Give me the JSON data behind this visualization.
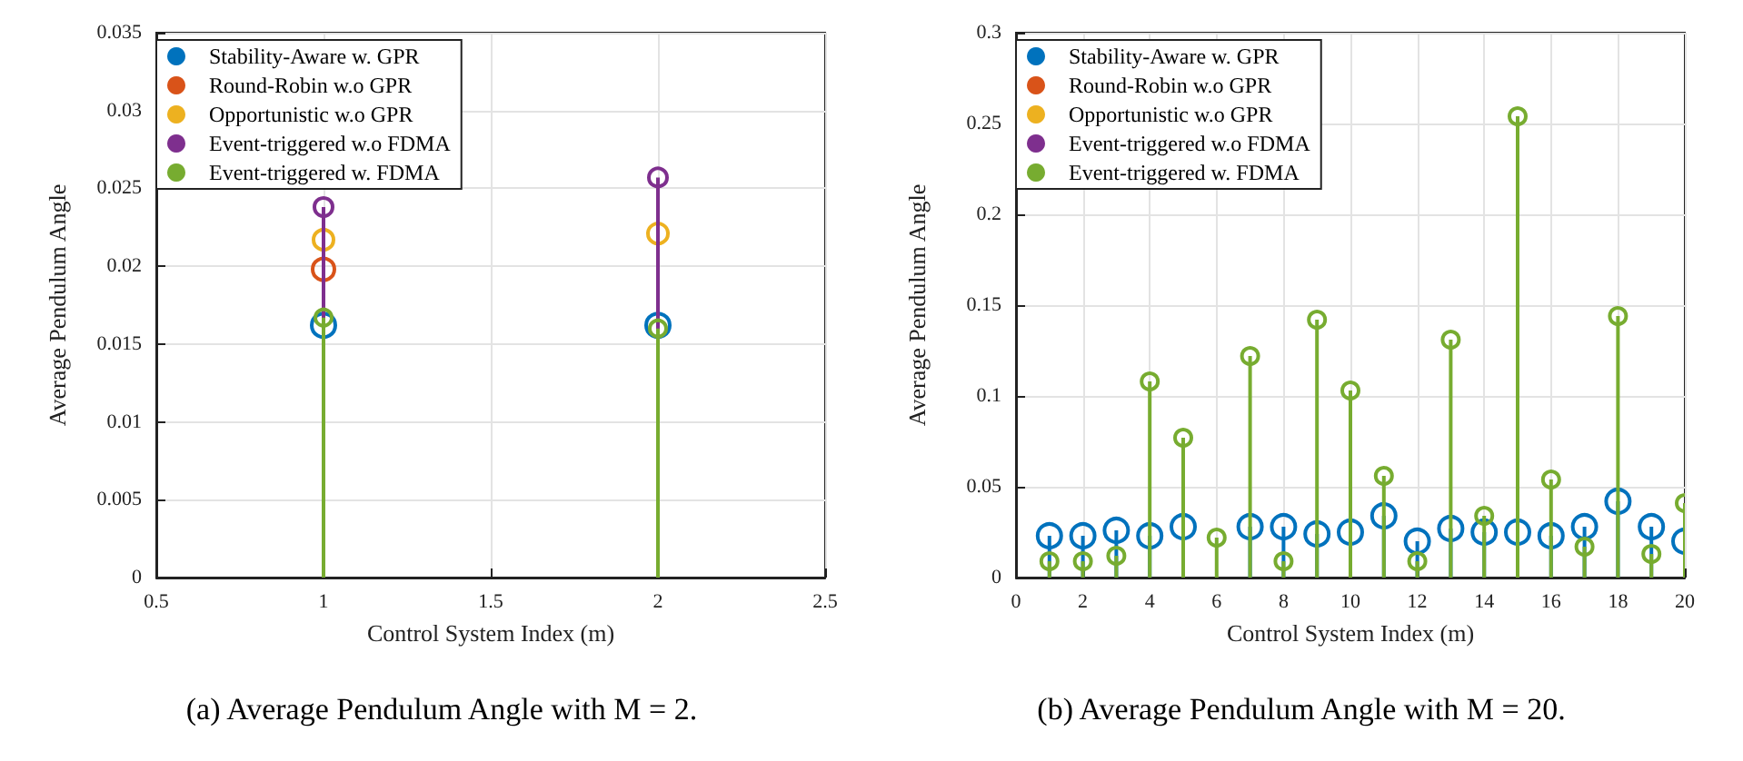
{
  "chart_data": [
    {
      "type": "lollipop",
      "title": "(a) Average Pendulum Angle with M = 2.",
      "xlabel": "Control System Index (m)",
      "ylabel": "Average Pendulum Angle",
      "x": [
        1,
        2
      ],
      "xlim": [
        0.5,
        2.5
      ],
      "xticks": [
        0.5,
        1,
        1.5,
        2,
        2.5
      ],
      "ylim": [
        0,
        0.035
      ],
      "yticks": [
        0,
        0.005,
        0.01,
        0.015,
        0.02,
        0.025,
        0.03,
        0.035
      ],
      "grid": true,
      "legend": "top left",
      "marker": "circle",
      "series": [
        {
          "name": "Stability-Aware w. GPR",
          "color": "#0072bd",
          "values": [
            0.0162,
            0.0162
          ]
        },
        {
          "name": "Round-Robin w.o GPR",
          "color": "#d95319",
          "values": [
            0.0198,
            null
          ]
        },
        {
          "name": "Opportunistic w.o GPR",
          "color": "#edb120",
          "values": [
            0.0217,
            0.0221
          ]
        },
        {
          "name": "Event-triggered w.o FDMA",
          "color": "#7e2f8e",
          "values": [
            0.0238,
            0.0257
          ]
        },
        {
          "name": "Event-triggered w. FDMA",
          "color": "#77ac30",
          "values": [
            0.0167,
            0.016
          ]
        }
      ]
    },
    {
      "type": "lollipop",
      "title": "(b) Average Pendulum Angle with M = 20.",
      "xlabel": "Control System Index (m)",
      "ylabel": "Average Pendulum Angle",
      "x": [
        1,
        2,
        3,
        4,
        5,
        6,
        7,
        8,
        9,
        10,
        11,
        12,
        13,
        14,
        15,
        16,
        17,
        18,
        19,
        20
      ],
      "xlim": [
        0,
        20
      ],
      "xticks": [
        0,
        2,
        4,
        6,
        8,
        10,
        12,
        14,
        16,
        18,
        20
      ],
      "ylim": [
        0,
        0.3
      ],
      "yticks": [
        0,
        0.05,
        0.1,
        0.15,
        0.2,
        0.25,
        0.3
      ],
      "grid": true,
      "legend": "top left",
      "marker": "circle",
      "series": [
        {
          "name": "Stability-Aware w. GPR",
          "color": "#0072bd",
          "values": [
            0.023,
            0.023,
            0.026,
            0.023,
            0.028,
            null,
            0.028,
            0.028,
            0.024,
            0.025,
            0.034,
            0.02,
            0.027,
            0.025,
            0.025,
            0.023,
            0.028,
            0.042,
            0.028,
            0.02
          ]
        },
        {
          "name": "Round-Robin w.o GPR",
          "color": "#d95319",
          "values": [
            null,
            null,
            null,
            null,
            null,
            null,
            null,
            null,
            null,
            null,
            null,
            null,
            null,
            null,
            null,
            null,
            null,
            null,
            null,
            null
          ]
        },
        {
          "name": "Opportunistic w.o GPR",
          "color": "#edb120",
          "values": [
            null,
            null,
            null,
            null,
            null,
            null,
            null,
            null,
            null,
            null,
            null,
            null,
            null,
            null,
            null,
            null,
            null,
            null,
            null,
            null
          ]
        },
        {
          "name": "Event-triggered w.o FDMA",
          "color": "#7e2f8e",
          "values": [
            null,
            null,
            null,
            null,
            null,
            null,
            null,
            null,
            null,
            null,
            null,
            null,
            null,
            null,
            null,
            null,
            null,
            null,
            null,
            null
          ]
        },
        {
          "name": "Event-triggered w. FDMA",
          "color": "#77ac30",
          "values": [
            0.009,
            0.009,
            0.012,
            0.108,
            0.077,
            0.022,
            0.122,
            0.009,
            0.142,
            0.103,
            0.056,
            0.009,
            0.131,
            0.034,
            0.254,
            0.054,
            0.017,
            0.144,
            0.013,
            0.041
          ]
        }
      ]
    }
  ]
}
